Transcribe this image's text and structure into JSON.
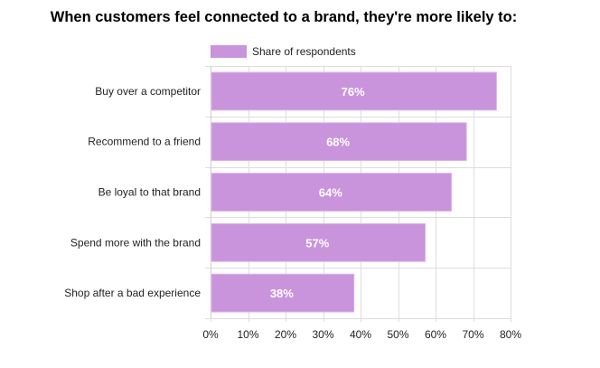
{
  "chart_data": {
    "type": "bar",
    "orientation": "horizontal",
    "title": "When customers feel connected to a brand, they're more likely to:",
    "categories": [
      "Buy over a competitor",
      "Recommend to a friend",
      "Be loyal to that brand",
      "Spend more with the brand",
      "Shop after a bad experience"
    ],
    "series": [
      {
        "name": "Share of respondents",
        "values": [
          76,
          68,
          64,
          57,
          38
        ],
        "color": "#c994dc"
      }
    ],
    "data_labels": [
      "76%",
      "68%",
      "64%",
      "57%",
      "38%"
    ],
    "xlim": [
      0,
      80
    ],
    "xticks": [
      0,
      10,
      20,
      30,
      40,
      50,
      60,
      70,
      80
    ],
    "xtick_labels": [
      "0%",
      "10%",
      "20%",
      "30%",
      "40%",
      "50%",
      "60%",
      "70%",
      "80%"
    ],
    "xlabel": "",
    "ylabel": "",
    "grid": true,
    "legend_position": "top"
  }
}
